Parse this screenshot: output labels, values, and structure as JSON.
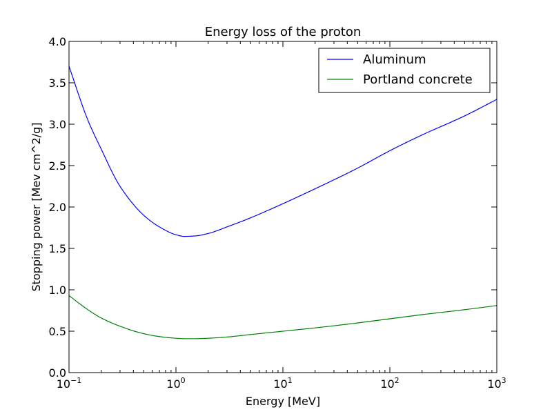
{
  "chart_data": {
    "type": "line",
    "title": "Energy loss of the proton",
    "xlabel": "Energy [MeV]",
    "ylabel": "Stopping power [Mev cm^2/g]",
    "xscale": "log",
    "xlim": [
      0.1,
      1000
    ],
    "ylim": [
      0.0,
      4.0
    ],
    "x_ticks": [
      {
        "value": 0.1,
        "base": "10",
        "exp": "−1"
      },
      {
        "value": 1,
        "base": "10",
        "exp": "0"
      },
      {
        "value": 10,
        "base": "10",
        "exp": "1"
      },
      {
        "value": 100,
        "base": "10",
        "exp": "2"
      },
      {
        "value": 1000,
        "base": "10",
        "exp": "3"
      }
    ],
    "y_ticks": [
      {
        "value": 0.0,
        "label": "0.0"
      },
      {
        "value": 0.5,
        "label": "0.5"
      },
      {
        "value": 1.0,
        "label": "1.0"
      },
      {
        "value": 1.5,
        "label": "1.5"
      },
      {
        "value": 2.0,
        "label": "2.0"
      },
      {
        "value": 2.5,
        "label": "2.5"
      },
      {
        "value": 3.0,
        "label": "3.0"
      },
      {
        "value": 3.5,
        "label": "3.5"
      },
      {
        "value": 4.0,
        "label": "4.0"
      }
    ],
    "grid": false,
    "legend_position": "top-right",
    "series": [
      {
        "name": "Aluminum",
        "color": "#0000ff",
        "x": [
          0.1,
          0.15,
          0.2,
          0.3,
          0.5,
          0.7,
          1.0,
          1.2,
          1.5,
          2.0,
          3.0,
          5.0,
          10,
          20,
          50,
          100,
          200,
          500,
          1000
        ],
        "y": [
          3.7,
          3.05,
          2.7,
          2.25,
          1.9,
          1.76,
          1.665,
          1.645,
          1.65,
          1.68,
          1.76,
          1.87,
          2.04,
          2.22,
          2.47,
          2.68,
          2.87,
          3.1,
          3.3
        ]
      },
      {
        "name": "Portland concrete",
        "color": "#008000",
        "x": [
          0.1,
          0.15,
          0.2,
          0.3,
          0.5,
          0.7,
          1.0,
          1.2,
          1.5,
          2.0,
          3.0,
          5.0,
          10,
          20,
          50,
          100,
          200,
          500,
          1000
        ],
        "y": [
          0.93,
          0.76,
          0.66,
          0.56,
          0.47,
          0.435,
          0.415,
          0.41,
          0.41,
          0.415,
          0.43,
          0.46,
          0.5,
          0.54,
          0.6,
          0.65,
          0.7,
          0.76,
          0.81
        ]
      }
    ]
  }
}
